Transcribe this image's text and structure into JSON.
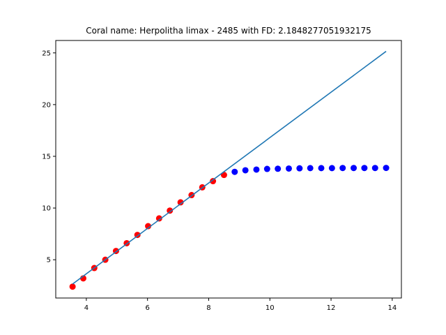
{
  "chart_data": {
    "type": "scatter",
    "title": "Coral name: Herpolitha limax - 2485 with FD: 2.1848277051932175",
    "xlabel": "",
    "ylabel": "",
    "xlim": [
      3.0,
      14.3
    ],
    "ylim": [
      1.3,
      26.2
    ],
    "xticks": [
      4,
      6,
      8,
      10,
      12,
      14
    ],
    "yticks": [
      5,
      10,
      15,
      20,
      25
    ],
    "grid": false,
    "series": [
      {
        "kind": "scatter",
        "color": "#ff0000",
        "x": [
          3.55,
          3.9,
          4.26,
          4.62,
          4.97,
          5.32,
          5.67,
          6.02,
          6.38,
          6.73,
          7.08,
          7.44,
          7.79,
          8.14,
          8.5
        ],
        "y": [
          2.4,
          3.2,
          4.2,
          5.0,
          5.85,
          6.6,
          7.4,
          8.25,
          9.0,
          9.75,
          10.55,
          11.25,
          12.0,
          12.6,
          13.2
        ]
      },
      {
        "kind": "scatter",
        "color": "#0000ff",
        "x": [
          8.85,
          9.2,
          9.56,
          9.91,
          10.26,
          10.62,
          10.97,
          11.32,
          11.68,
          12.03,
          12.38,
          12.74,
          13.09,
          13.44,
          13.8
        ],
        "y": [
          13.5,
          13.65,
          13.72,
          13.78,
          13.8,
          13.82,
          13.84,
          13.86,
          13.86,
          13.86,
          13.87,
          13.87,
          13.87,
          13.87,
          13.88
        ]
      },
      {
        "kind": "line",
        "color": "#1f77b4",
        "x": [
          3.55,
          13.8
        ],
        "y": [
          2.65,
          25.15
        ]
      }
    ]
  }
}
